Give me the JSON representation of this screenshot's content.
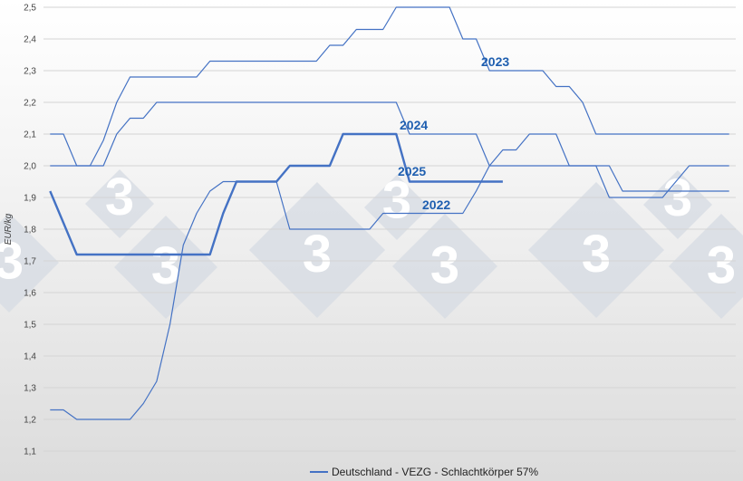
{
  "chart_data": {
    "type": "line",
    "ylabel": "EUR/kg",
    "ylim": [
      1.1,
      2.5
    ],
    "y_ticks": [
      "1,1",
      "1,2",
      "1,3",
      "1,4",
      "1,5",
      "1,6",
      "1,7",
      "1,8",
      "1,9",
      "2,0",
      "2,1",
      "2,2",
      "2,3",
      "2,4",
      "2,5"
    ],
    "grid": "horizontal",
    "x_range": [
      0,
      52
    ],
    "legend_position": "bottom-center",
    "legend_label": "Deutschland - VEZG - Schlachtkörper 57%",
    "series_color": "#4472c4",
    "label_color": "#1f5fb0",
    "watermark": "3",
    "series": [
      {
        "name": "2022",
        "bold": false,
        "x": [
          0.5,
          1.5,
          2.5,
          3.5,
          4.5,
          5.5,
          6.5,
          7.5,
          8.5,
          9.5,
          10.5,
          11.5,
          12.5,
          13.5,
          14.5,
          15.5,
          16.5,
          17.5,
          18.5,
          19.5,
          20.5,
          21.5,
          22.5,
          23.5,
          24.5,
          25.5,
          26.5,
          27.5,
          28.5,
          29.5,
          30.5,
          31.5,
          32.5,
          33.5,
          34.5,
          35.5,
          36.5,
          37.5,
          38.5,
          39.5,
          40.5,
          41.5,
          42.5,
          43.5,
          44.5,
          45.5,
          46.5,
          47.5,
          48.5,
          49.5,
          50.5,
          51.5
        ],
        "y": [
          1.23,
          1.23,
          1.2,
          1.2,
          1.2,
          1.2,
          1.2,
          1.25,
          1.32,
          1.5,
          1.75,
          1.85,
          1.92,
          1.95,
          1.95,
          1.95,
          1.95,
          1.95,
          1.8,
          1.8,
          1.8,
          1.8,
          1.8,
          1.8,
          1.8,
          1.85,
          1.85,
          1.85,
          1.85,
          1.85,
          1.85,
          1.85,
          1.92,
          2.0,
          2.05,
          2.05,
          2.1,
          2.1,
          2.1,
          2.0,
          2.0,
          2.0,
          1.9,
          1.9,
          1.9,
          1.9,
          1.9,
          1.95,
          2.0,
          2.0,
          2.0,
          2.0
        ],
        "label": "2022"
      },
      {
        "name": "2023",
        "bold": false,
        "x": [
          0.5,
          1.5,
          2.5,
          3.5,
          4.5,
          5.5,
          6.5,
          7.5,
          8.5,
          9.5,
          10.5,
          11.5,
          12.5,
          13.5,
          14.5,
          15.5,
          16.5,
          17.5,
          18.5,
          19.5,
          20.5,
          21.5,
          22.5,
          23.5,
          24.5,
          25.5,
          26.5,
          27.5,
          28.5,
          29.5,
          30.5,
          31.5,
          32.5,
          33.5,
          34.5,
          35.5,
          36.5,
          37.5,
          38.5,
          39.5,
          40.5,
          41.5,
          42.5,
          43.5,
          44.5,
          45.5,
          46.5,
          47.5,
          48.5,
          49.5,
          50.5,
          51.5
        ],
        "y": [
          2.1,
          2.1,
          2.0,
          2.0,
          2.08,
          2.2,
          2.28,
          2.28,
          2.28,
          2.28,
          2.28,
          2.28,
          2.33,
          2.33,
          2.33,
          2.33,
          2.33,
          2.33,
          2.33,
          2.33,
          2.33,
          2.38,
          2.38,
          2.43,
          2.43,
          2.43,
          2.5,
          2.5,
          2.5,
          2.5,
          2.5,
          2.4,
          2.4,
          2.3,
          2.3,
          2.3,
          2.3,
          2.3,
          2.25,
          2.25,
          2.2,
          2.1,
          2.1,
          2.1,
          2.1,
          2.1,
          2.1,
          2.1,
          2.1,
          2.1,
          2.1,
          2.1
        ],
        "label": "2023"
      },
      {
        "name": "2024",
        "bold": false,
        "x": [
          0.5,
          1.5,
          2.5,
          3.5,
          4.5,
          5.5,
          6.5,
          7.5,
          8.5,
          9.5,
          10.5,
          11.5,
          12.5,
          13.5,
          14.5,
          15.5,
          16.5,
          17.5,
          18.5,
          19.5,
          20.5,
          21.5,
          22.5,
          23.5,
          24.5,
          25.5,
          26.5,
          27.5,
          28.5,
          29.5,
          30.5,
          31.5,
          32.5,
          33.5,
          34.5,
          35.5,
          36.5,
          37.5,
          38.5,
          39.5,
          40.5,
          41.5,
          42.5,
          43.5,
          44.5,
          45.5,
          46.5,
          47.5,
          48.5,
          49.5,
          50.5,
          51.5
        ],
        "y": [
          2.0,
          2.0,
          2.0,
          2.0,
          2.0,
          2.1,
          2.15,
          2.15,
          2.2,
          2.2,
          2.2,
          2.2,
          2.2,
          2.2,
          2.2,
          2.2,
          2.2,
          2.2,
          2.2,
          2.2,
          2.2,
          2.2,
          2.2,
          2.2,
          2.2,
          2.2,
          2.2,
          2.1,
          2.1,
          2.1,
          2.1,
          2.1,
          2.1,
          2.0,
          2.0,
          2.0,
          2.0,
          2.0,
          2.0,
          2.0,
          2.0,
          2.0,
          2.0,
          1.92,
          1.92,
          1.92,
          1.92,
          1.92,
          1.92,
          1.92,
          1.92,
          1.92
        ],
        "label": "2024"
      },
      {
        "name": "2025",
        "bold": true,
        "x": [
          0.5,
          1.5,
          2.5,
          3.5,
          4.5,
          5.5,
          6.5,
          7.5,
          8.5,
          9.5,
          10.5,
          11.5,
          12.5,
          13.5,
          14.5,
          15.5,
          16.5,
          17.5,
          18.5,
          19.5,
          20.5,
          21.5,
          22.5,
          23.5,
          24.5,
          25.5,
          26.5,
          27.5,
          28.5,
          29.5,
          30.5,
          31.5,
          32.5,
          33.5,
          34.5
        ],
        "y": [
          1.92,
          1.82,
          1.72,
          1.72,
          1.72,
          1.72,
          1.72,
          1.72,
          1.72,
          1.72,
          1.72,
          1.72,
          1.72,
          1.85,
          1.95,
          1.95,
          1.95,
          1.95,
          2.0,
          2.0,
          2.0,
          2.0,
          2.1,
          2.1,
          2.1,
          2.1,
          2.1,
          1.95,
          1.95,
          1.95,
          1.95,
          1.95,
          1.95,
          1.95,
          1.95
        ],
        "label": "2025"
      }
    ]
  }
}
